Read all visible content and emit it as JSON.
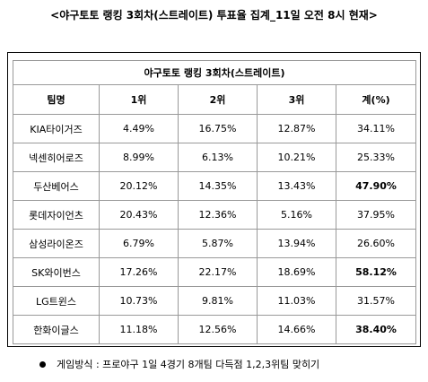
{
  "page_title": "<야구토토 랭킹 3회차(스트레이트) 투표율 집계_11일 오전 8시 현재>",
  "table": {
    "title": "야구토토 랭킹 3회차(스트레이트)",
    "headers": [
      "팀명",
      "1위",
      "2위",
      "3위",
      "계(%)"
    ],
    "rows": [
      {
        "team": "KIA타이거즈",
        "first": "4.49%",
        "second": "16.75%",
        "third": "12.87%",
        "total": "34.11%",
        "total_bold": false
      },
      {
        "team": "넥센히어로즈",
        "first": "8.99%",
        "second": "6.13%",
        "third": "10.21%",
        "total": "25.33%",
        "total_bold": false
      },
      {
        "team": "두산베어스",
        "first": "20.12%",
        "second": "14.35%",
        "third": "13.43%",
        "total": "47.90%",
        "total_bold": true
      },
      {
        "team": "롯데자이언츠",
        "first": "20.43%",
        "second": "12.36%",
        "third": "5.16%",
        "total": "37.95%",
        "total_bold": false
      },
      {
        "team": "삼성라이온즈",
        "first": "6.79%",
        "second": "5.87%",
        "third": "13.94%",
        "total": "26.60%",
        "total_bold": false
      },
      {
        "team": "SK와이번스",
        "first": "17.26%",
        "second": "22.17%",
        "third": "18.69%",
        "total": "58.12%",
        "total_bold": true
      },
      {
        "team": "LG트윈스",
        "first": "10.73%",
        "second": "9.81%",
        "third": "11.03%",
        "total": "31.57%",
        "total_bold": false
      },
      {
        "team": "한화이글스",
        "first": "11.18%",
        "second": "12.56%",
        "third": "14.66%",
        "total": "38.40%",
        "total_bold": true
      }
    ]
  },
  "footnote": "게임방식 : 프로야구 1일 4경기 8개팀 다득점 1,2,3위팀 맞히기"
}
